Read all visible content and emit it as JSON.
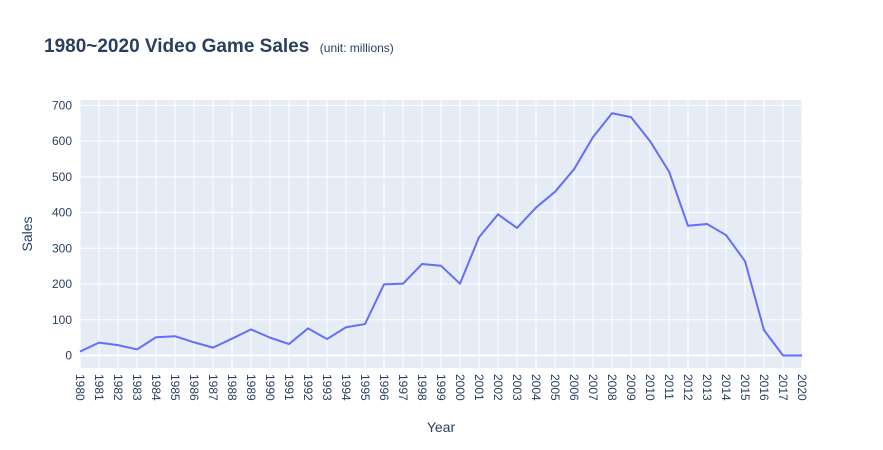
{
  "chart_data": {
    "type": "line",
    "title": "1980~2020 Video Game Sales",
    "subtitle": "(unit: millions)",
    "xlabel": "Year",
    "ylabel": "Sales",
    "ylim": [
      -35,
      715
    ],
    "yticks": [
      0,
      100,
      200,
      300,
      400,
      500,
      600,
      700
    ],
    "grid": true,
    "legend": "none",
    "line_color": "#636efa",
    "plot_bg": "#e5ecf6",
    "x": [
      "1980",
      "1981",
      "1982",
      "1983",
      "1984",
      "1985",
      "1986",
      "1987",
      "1988",
      "1989",
      "1990",
      "1991",
      "1992",
      "1993",
      "1994",
      "1995",
      "1996",
      "1997",
      "1998",
      "1999",
      "2000",
      "2001",
      "2002",
      "2003",
      "2004",
      "2005",
      "2006",
      "2007",
      "2008",
      "2009",
      "2010",
      "2011",
      "2012",
      "2013",
      "2014",
      "2015",
      "2016",
      "2017",
      "2020"
    ],
    "series": [
      {
        "values": [
          11,
          36,
          29,
          17,
          51,
          54,
          37,
          22,
          47,
          73,
          50,
          32,
          76,
          46,
          79,
          88,
          199,
          201,
          256,
          251,
          201,
          331,
          395,
          357,
          414,
          458,
          521,
          611,
          678,
          667,
          600,
          515,
          363,
          368,
          337,
          264,
          71,
          0,
          0
        ]
      }
    ]
  }
}
